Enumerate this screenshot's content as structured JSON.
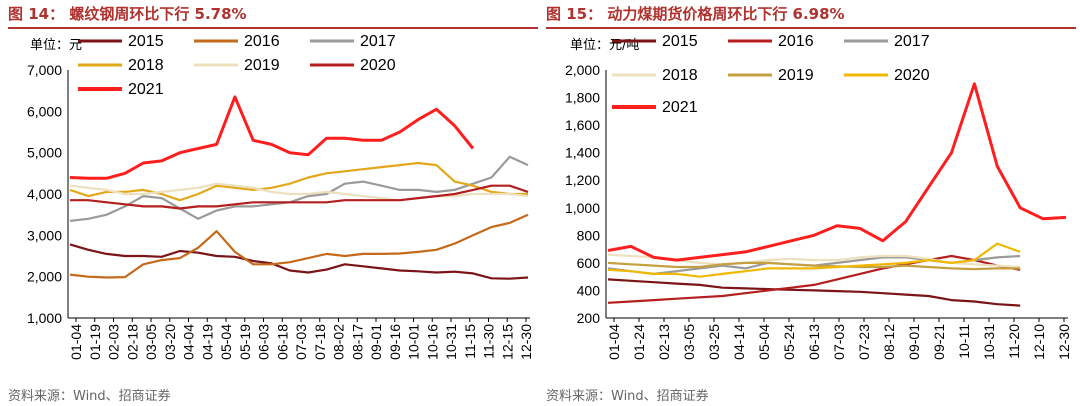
{
  "charts": [
    {
      "title": "图 14： 螺纹钢周环比下行 5.78%",
      "source": "资料来源：Wind、招商证券",
      "chart_data": {
        "type": "line",
        "unit_label": "单位：元",
        "ylim": [
          1000,
          7000
        ],
        "y_ticks": [
          "1,000",
          "2,000",
          "3,000",
          "4,000",
          "5,000",
          "6,000",
          "7,000"
        ],
        "y_tick_values": [
          1000,
          2000,
          3000,
          4000,
          5000,
          6000,
          7000
        ],
        "x_ticks": [
          "01-04",
          "01-19",
          "02-03",
          "02-18",
          "03-05",
          "03-20",
          "04-04",
          "04-19",
          "05-04",
          "05-19",
          "06-03",
          "06-18",
          "07-03",
          "07-18",
          "08-02",
          "08-17",
          "09-01",
          "09-16",
          "10-01",
          "10-16",
          "10-31",
          "11-15",
          "11-30",
          "12-15",
          "12-30"
        ],
        "legend": [
          "2015",
          "2016",
          "2017",
          "2018",
          "2019",
          "2020",
          "2021"
        ],
        "series": [
          {
            "name": "2015",
            "color": "#7b1416",
            "values": [
              2780,
              2650,
              2550,
              2500,
              2500,
              2480,
              2620,
              2580,
              2500,
              2480,
              2380,
              2320,
              2150,
              2100,
              2170,
              2300,
              2250,
              2200,
              2150,
              2130,
              2100,
              2120,
              2080,
              1960,
              1950,
              1980
            ]
          },
          {
            "name": "2016",
            "color": "#c46a1a",
            "values": [
              2050,
              2000,
              1980,
              1990,
              2300,
              2400,
              2450,
              2700,
              3100,
              2600,
              2300,
              2300,
              2350,
              2450,
              2550,
              2500,
              2550,
              2550,
              2560,
              2600,
              2650,
              2800,
              3000,
              3200,
              3300,
              3500
            ]
          },
          {
            "name": "2017",
            "color": "#9a9a9a",
            "values": [
              3350,
              3400,
              3500,
              3700,
              3950,
              3900,
              3650,
              3400,
              3600,
              3700,
              3700,
              3750,
              3800,
              3950,
              4000,
              4250,
              4300,
              4200,
              4100,
              4100,
              4050,
              4100,
              4250,
              4400,
              4900,
              4700
            ]
          },
          {
            "name": "2018",
            "color": "#e3a819",
            "values": [
              4100,
              3950,
              4050,
              4050,
              4100,
              4000,
              3850,
              4000,
              4200,
              4150,
              4100,
              4150,
              4250,
              4400,
              4500,
              4550,
              4600,
              4650,
              4700,
              4750,
              4700,
              4300,
              4200,
              4050,
              4000,
              4000
            ]
          },
          {
            "name": "2019",
            "color": "#ece0bf",
            "values": [
              4200,
              4150,
              4100,
              4000,
              4000,
              4050,
              4100,
              4150,
              4250,
              4200,
              4150,
              4050,
              4000,
              4000,
              4050,
              4000,
              3950,
              3900,
              3850,
              3900,
              3950,
              3950,
              4000,
              4000,
              4000,
              3950
            ]
          },
          {
            "name": "2020",
            "color": "#b51e1e",
            "values": [
              3850,
              3850,
              3800,
              3750,
              3700,
              3700,
              3650,
              3700,
              3700,
              3750,
              3800,
              3800,
              3800,
              3800,
              3800,
              3850,
              3850,
              3850,
              3850,
              3900,
              3950,
              4000,
              4100,
              4200,
              4200,
              4050
            ]
          },
          {
            "name": "2021",
            "color": "#ff1e1e",
            "values": [
              4400,
              4380,
              4380,
              4500,
              4750,
              4800,
              5000,
              5100,
              5200,
              6350,
              5300,
              5200,
              5000,
              4950,
              5350,
              5350,
              5300,
              5300,
              5500,
              5800,
              6050,
              5650,
              5100
            ]
          }
        ]
      }
    },
    {
      "title": "图 15： 动力煤期货价格周环比下行 6.98%",
      "source": "资料来源：Wind、招商证券",
      "chart_data": {
        "type": "line",
        "unit_label": "单位：元/吨",
        "ylim": [
          200,
          2000
        ],
        "y_ticks": [
          "200",
          "400",
          "600",
          "800",
          "1,000",
          "1,200",
          "1,400",
          "1,600",
          "1,800",
          "2,000"
        ],
        "y_tick_values": [
          200,
          400,
          600,
          800,
          1000,
          1200,
          1400,
          1600,
          1800,
          2000
        ],
        "x_ticks": [
          "01-04",
          "01-24",
          "02-13",
          "03-05",
          "03-25",
          "04-14",
          "05-04",
          "05-24",
          "06-13",
          "07-03",
          "07-23",
          "08-12",
          "09-01",
          "09-21",
          "10-11",
          "10-31",
          "11-20",
          "12-10",
          "12-30"
        ],
        "legend": [
          "2015",
          "2016",
          "2017",
          "2018",
          "2019",
          "2020",
          "2021"
        ],
        "series": [
          {
            "name": "2015",
            "color": "#7b1416",
            "values": [
              480,
              470,
              460,
              450,
              440,
              420,
              415,
              410,
              405,
              400,
              395,
              390,
              380,
              370,
              360,
              330,
              320,
              300,
              290
            ]
          },
          {
            "name": "2016",
            "color": "#b51e1e",
            "values": [
              310,
              320,
              330,
              340,
              350,
              360,
              380,
              400,
              420,
              440,
              480,
              520,
              560,
              590,
              620,
              650,
              620,
              580,
              550
            ]
          },
          {
            "name": "2017",
            "color": "#9a9a9a",
            "values": [
              560,
              540,
              520,
              540,
              560,
              580,
              560,
              600,
              590,
              580,
              600,
              620,
              640,
              640,
              620,
              600,
              620,
              640,
              650
            ]
          },
          {
            "name": "2018",
            "color": "#ece0bf",
            "values": [
              660,
              650,
              640,
              620,
              600,
              590,
              600,
              620,
              630,
              620,
              620,
              640,
              650,
              650,
              630,
              600,
              590,
              580,
              570
            ]
          },
          {
            "name": "2019",
            "color": "#c4a040",
            "values": [
              600,
              590,
              580,
              570,
              570,
              590,
              600,
              600,
              590,
              580,
              575,
              570,
              570,
              580,
              570,
              560,
              555,
              560,
              560
            ]
          },
          {
            "name": "2020",
            "color": "#f0b800",
            "values": [
              550,
              540,
              520,
              520,
              500,
              520,
              540,
              560,
              560,
              560,
              570,
              580,
              590,
              600,
              620,
              600,
              620,
              740,
              680
            ]
          },
          {
            "name": "2021",
            "color": "#ff1e1e",
            "values": [
              690,
              720,
              640,
              620,
              640,
              660,
              680,
              720,
              760,
              800,
              870,
              850,
              760,
              900,
              1150,
              1400,
              1900,
              1300,
              1000,
              920,
              930
            ]
          }
        ]
      }
    }
  ]
}
